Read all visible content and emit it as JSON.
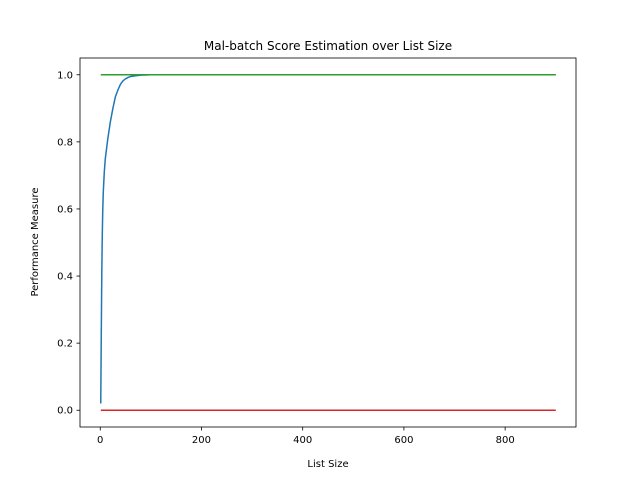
{
  "chart_data": {
    "type": "line",
    "title": "Mal-batch Score Estimation over List Size",
    "xlabel": "List Size",
    "ylabel": "Performance Measure",
    "xlim": [
      -40,
      940
    ],
    "ylim": [
      -0.05,
      1.05
    ],
    "xticks": [
      0,
      200,
      400,
      600,
      800
    ],
    "yticks": [
      0.0,
      0.2,
      0.4,
      0.6,
      0.8,
      1.0
    ],
    "xtick_labels": [
      "0",
      "200",
      "400",
      "600",
      "800"
    ],
    "ytick_labels": [
      "0.0",
      "0.2",
      "0.4",
      "0.6",
      "0.8",
      "1.0"
    ],
    "grid": false,
    "series": [
      {
        "color": "#1f77b4",
        "x": [
          1,
          2,
          3,
          4,
          5,
          6,
          8,
          10,
          15,
          20,
          25,
          30,
          35,
          40,
          45,
          50,
          55,
          60,
          70,
          80,
          90,
          100,
          150,
          200,
          300,
          400,
          500,
          600,
          700,
          800,
          900
        ],
        "y": [
          0.02,
          0.22,
          0.4,
          0.52,
          0.6,
          0.65,
          0.71,
          0.75,
          0.81,
          0.86,
          0.9,
          0.935,
          0.955,
          0.972,
          0.982,
          0.988,
          0.992,
          0.995,
          0.997,
          0.999,
          0.9995,
          1.0,
          1.0,
          1.0,
          1.0,
          1.0,
          1.0,
          1.0,
          1.0,
          1.0,
          1.0
        ]
      },
      {
        "color": "#2ca02c",
        "x": [
          1,
          900
        ],
        "y": [
          1.0,
          1.0
        ]
      },
      {
        "color": "#d62728",
        "x": [
          1,
          900
        ],
        "y": [
          0.0,
          0.0
        ]
      }
    ]
  }
}
